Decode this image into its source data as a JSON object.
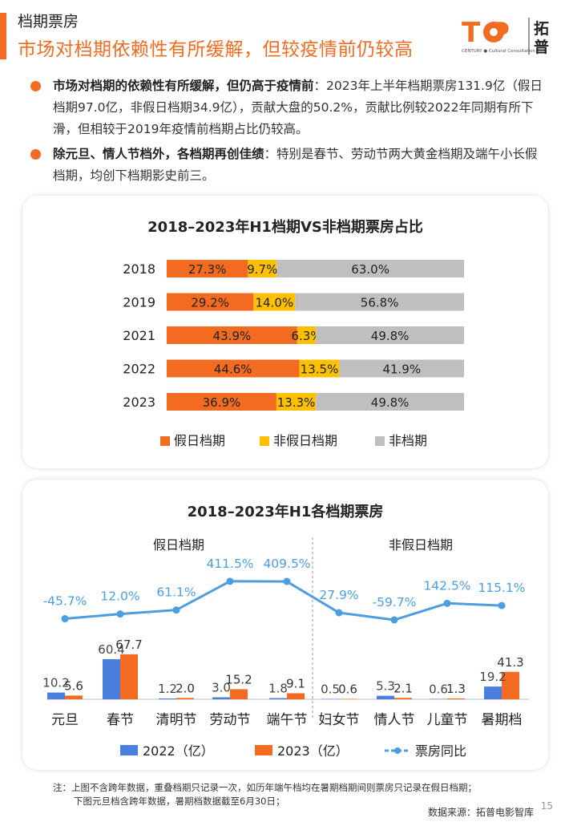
{
  "header": {
    "section": "档期票房",
    "headline": "市场对档期依赖性有所缓解，但较疫情前仍较高",
    "logo_text": "T P",
    "logo_sub": "CENTURY ● Cultural Consultation",
    "logo_cn_1": "拓",
    "logo_cn_2": "普"
  },
  "bullets": [
    {
      "head": "市场对档期的依赖性有所缓解，但仍高于疫情前",
      "body": "：2023年上半年档期票房131.9亿（假日档期97.0亿，非假日档期34.9亿），贡献大盘的50.2%，贡献比例较2022年同期有所下滑，但相较于2019年疫情前档期占比仍较高。"
    },
    {
      "head": "除元旦、情人节档外，各档期再创佳绩",
      "body": "：特别是春节、劳动节两大黄金档期及端午小长假档期，均创下档期影史前三。"
    }
  ],
  "colors": {
    "orange": "#f26b21",
    "yellow": "#ffc000",
    "gray": "#bfbfbf",
    "blue": "#4a7fe0",
    "line": "#4c9ee0"
  },
  "chart_data": [
    {
      "type": "bar",
      "orientation": "horizontal-stacked",
      "title": "2018–2023年H1档期VS非档期票房占比",
      "categories": [
        "2018",
        "2019",
        "2021",
        "2022",
        "2023"
      ],
      "series": [
        {
          "name": "假日档期",
          "color": "#f26b21",
          "values": [
            27.3,
            29.2,
            43.9,
            44.6,
            36.9
          ],
          "labels": [
            "27.3%",
            "29.2%",
            "43.9%",
            "44.6%",
            "36.9%"
          ]
        },
        {
          "name": "非假日档期",
          "color": "#ffc000",
          "values": [
            9.7,
            14.0,
            6.3,
            13.5,
            13.3
          ],
          "labels": [
            "9.7%",
            "14.0%",
            "6.3%",
            "13.5%",
            "13.3%"
          ]
        },
        {
          "name": "非档期",
          "color": "#bfbfbf",
          "values": [
            63.0,
            56.8,
            49.8,
            41.9,
            49.8
          ],
          "labels": [
            "63.0%",
            "56.8%",
            "49.8%",
            "41.9%",
            "49.8%"
          ]
        }
      ],
      "legend": "bottom"
    },
    {
      "type": "bar",
      "overlay": "line",
      "title": "2018–2023年H1各档期票房",
      "group_labels": [
        "假日档期",
        "非假日档期"
      ],
      "categories": [
        "元旦",
        "春节",
        "清明节",
        "劳动节",
        "端午节",
        "妇女节",
        "情人节",
        "儿童节",
        "暑期档"
      ],
      "series": [
        {
          "name": "2022（亿）",
          "color": "#4a7fe0",
          "values": [
            10.2,
            60.4,
            1.2,
            3.0,
            1.8,
            0.5,
            5.3,
            0.6,
            19.2
          ],
          "labels": [
            "10.2",
            "60.4",
            "1.2",
            "3.0",
            "1.8",
            "0.5",
            "5.3",
            "0.6",
            "19.2"
          ]
        },
        {
          "name": "2023（亿）",
          "color": "#f26b21",
          "values": [
            5.6,
            67.7,
            2.0,
            15.2,
            9.1,
            0.6,
            2.1,
            1.3,
            41.3
          ],
          "labels": [
            "5.6",
            "67.7",
            "2.0",
            "15.2",
            "9.1",
            "0.6",
            "2.1",
            "1.3",
            "41.3"
          ]
        }
      ],
      "line": {
        "name": "票房同比",
        "color": "#4c9ee0",
        "values": [
          -45.7,
          12.0,
          61.1,
          411.5,
          409.5,
          27.9,
          -59.7,
          142.5,
          115.1
        ],
        "labels": [
          "-45.7%",
          "12.0%",
          "61.1%",
          "411.5%",
          "409.5%",
          "27.9%",
          "-59.7%",
          "142.5%",
          "115.1%"
        ]
      },
      "legend": "bottom"
    }
  ],
  "footer": {
    "note_1": "注：上图不含跨年数据，重叠档期只记录一次，如历年端午档均在暑期档期间则票房只记录在假日档期；",
    "note_2": "下图元旦档含跨年数据，暑期档数据截至6月30日；",
    "source": "数据来源：拓普电影智库",
    "page": "15"
  }
}
